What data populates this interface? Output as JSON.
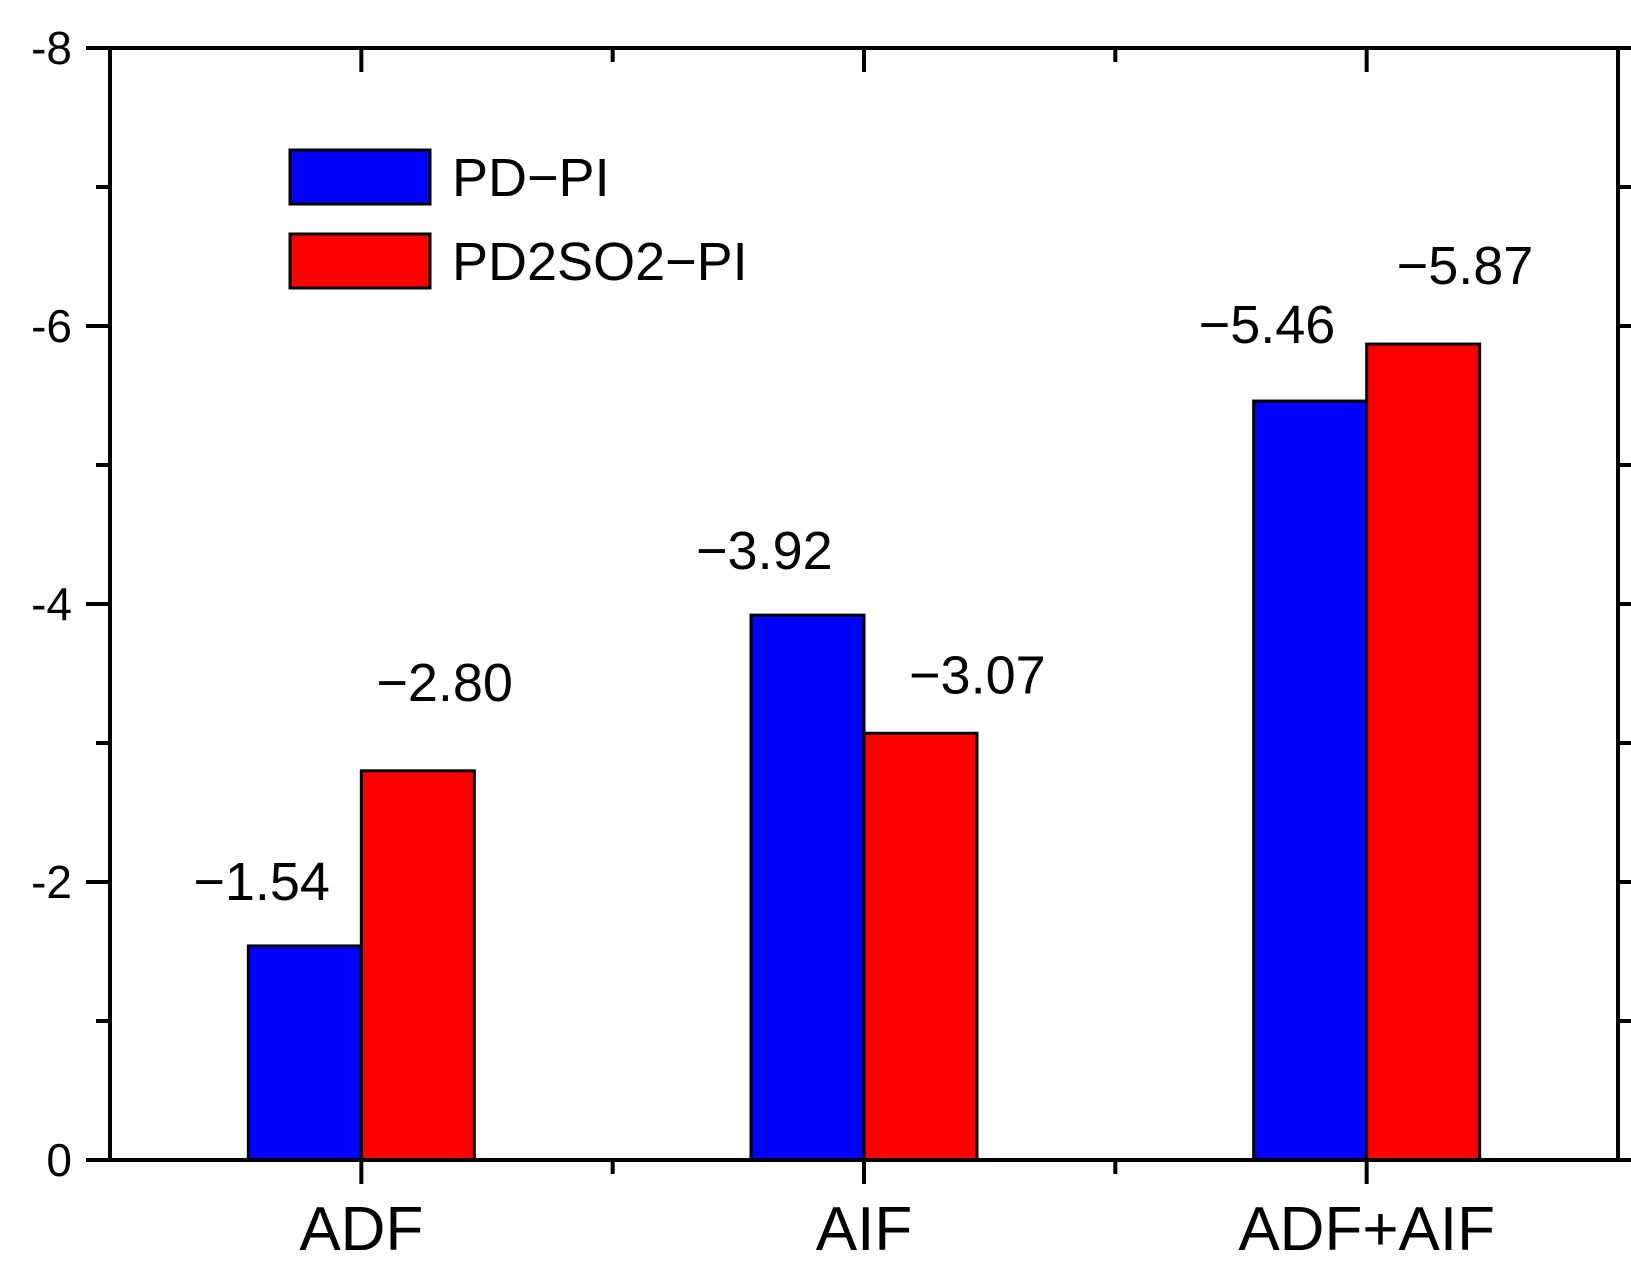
{
  "chart_data": {
    "type": "bar",
    "categories": [
      "ADF",
      "AIF",
      "ADF+AIF"
    ],
    "series": [
      {
        "name": "PD−PI",
        "color": "#0000ff",
        "values": [
          -1.54,
          -3.92,
          -5.46
        ],
        "labels": [
          "−1.54",
          "−3.92",
          "−5.46"
        ]
      },
      {
        "name": "PD2SO2−PI",
        "color": "#ff0000",
        "values": [
          -2.8,
          -3.07,
          -5.87
        ],
        "labels": [
          "−2.80",
          "−3.07",
          "−5.87"
        ]
      }
    ],
    "yticks": [
      0,
      -2,
      -4,
      -6,
      -8
    ],
    "ytick_labels": [
      "0",
      "-2",
      "-4",
      "-6",
      "-8"
    ],
    "ylim": [
      0,
      -8
    ],
    "y_inverted": true,
    "title": "",
    "xlabel": "",
    "ylabel": "",
    "legend_position": "top-left",
    "grid": false
  }
}
